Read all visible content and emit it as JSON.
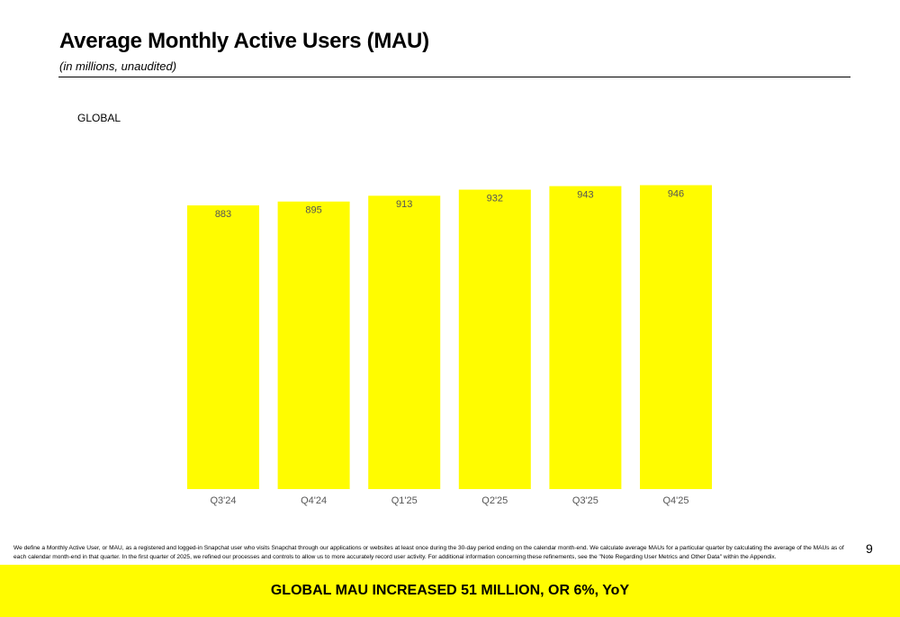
{
  "header": {
    "title": "Average Monthly Active Users (MAU)",
    "subtitle": "(in millions, unaudited)"
  },
  "region_label": "GLOBAL",
  "chart_data": {
    "type": "bar",
    "categories": [
      "Q3'24",
      "Q4'24",
      "Q1'25",
      "Q2'25",
      "Q3'25",
      "Q4'25"
    ],
    "values": [
      883,
      895,
      913,
      932,
      943,
      946
    ],
    "color": "#FFFC00",
    "grid": false
  },
  "footnote": "We define a Monthly Active User, or MAU, as a registered and logged-in Snapchat user who visits Snapchat through our applications or websites at least once during the 30-day period ending on the calendar month-end. We calculate average MAUs for a particular quarter by calculating the average of the MAUs as of each calendar month-end in that quarter. In the first quarter of 2025, we refined our processes and controls to allow us to more accurately record user activity. For additional information concerning these refinements, see the \"Note Regarding User Metrics and Other Data\" within the Appendix.",
  "page_number": 9,
  "banner": "GLOBAL MAU INCREASED 51 MILLION, OR 6%, YoY"
}
